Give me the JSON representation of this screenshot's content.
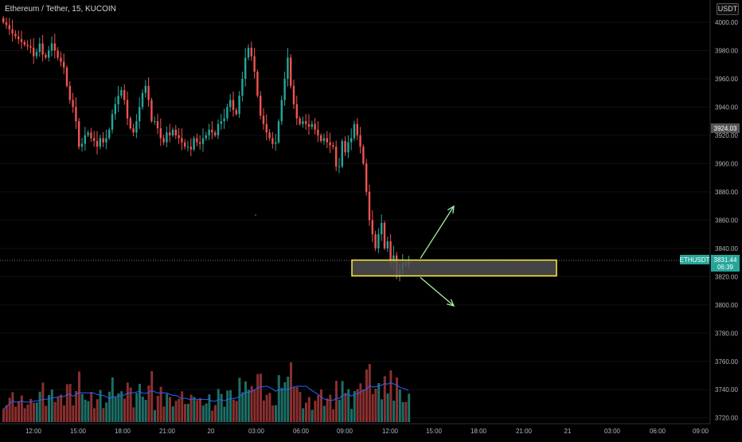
{
  "header": {
    "symbol_title": "Ethereum / Tether, 15, KUCOIN",
    "currency_badge": "USDT"
  },
  "price_scale": {
    "ticks": [
      "4000.00",
      "3980.00",
      "3960.00",
      "3940.00",
      "3920.00",
      "3900.00",
      "3880.00",
      "3860.00",
      "3840.00",
      "3820.00",
      "3800.00",
      "3780.00",
      "3760.00",
      "3740.00",
      "3720.00"
    ]
  },
  "time_scale": {
    "ticks": [
      "12:00",
      "15:00",
      "18:00",
      "21:00",
      "20",
      "03:00",
      "06:00",
      "09:00",
      "12:00",
      "15:00",
      "18:00",
      "21:00",
      "21",
      "03:00",
      "06:00",
      "09:00"
    ]
  },
  "labels": {
    "prev_close_value": "3924.03",
    "symbol_tag": "ETHUSDT",
    "last_price": "3831.44",
    "countdown": "06:39"
  },
  "colors": {
    "up": "#26a69a",
    "down": "#ef5350",
    "vol_up": "#1d6e66",
    "vol_down": "#8a2f2f",
    "ma_line": "#2962ff",
    "zone_border": "#ffeb3b",
    "zone_fill": "#505050",
    "arrow": "#a5f2a5",
    "last_price_bg": "#26a69a"
  },
  "chart_data": {
    "type": "candlestick",
    "timeframe": "15",
    "y_range": [
      3715,
      4010
    ],
    "close_series": [
      4000,
      3998,
      3995,
      3992,
      3990,
      3988,
      3986,
      3984,
      3983,
      3982,
      3976,
      3979,
      3985,
      3977,
      3975,
      3980,
      3985,
      3980,
      3975,
      3972,
      3968,
      3955,
      3945,
      3940,
      3930,
      3912,
      3914,
      3920,
      3922,
      3918,
      3916,
      3912,
      3918,
      3915,
      3918,
      3924,
      3935,
      3942,
      3948,
      3952,
      3945,
      3932,
      3925,
      3922,
      3930,
      3940,
      3950,
      3955,
      3945,
      3930,
      3930,
      3925,
      3918,
      3915,
      3922,
      3920,
      3924,
      3920,
      3918,
      3915,
      3912,
      3912,
      3910,
      3918,
      3915,
      3914,
      3918,
      3920,
      3924,
      3922,
      3920,
      3928,
      3930,
      3932,
      3940,
      3945,
      3938,
      3935,
      3948,
      3960,
      3975,
      3982,
      3976,
      3965,
      3948,
      3934,
      3928,
      3922,
      3918,
      3914,
      3915,
      3930,
      3945,
      3960,
      3975,
      3955,
      3942,
      3932,
      3928,
      3930,
      3928,
      3926,
      3928,
      3924,
      3920,
      3916,
      3918,
      3915,
      3913,
      3912,
      3898,
      3898,
      3916,
      3908,
      3915,
      3918,
      3928,
      3920,
      3912,
      3900,
      3880,
      3860,
      3850,
      3840,
      3850,
      3858,
      3840,
      3845,
      3830,
      3835,
      3820,
      3825,
      3830,
      3828,
      3831.44
    ],
    "annotations": {
      "zone_low": 3820.5,
      "zone_high": 3831.7,
      "last_price": 3831.44,
      "prev_close": 3924.03,
      "arrows": [
        "up",
        "down"
      ]
    }
  }
}
